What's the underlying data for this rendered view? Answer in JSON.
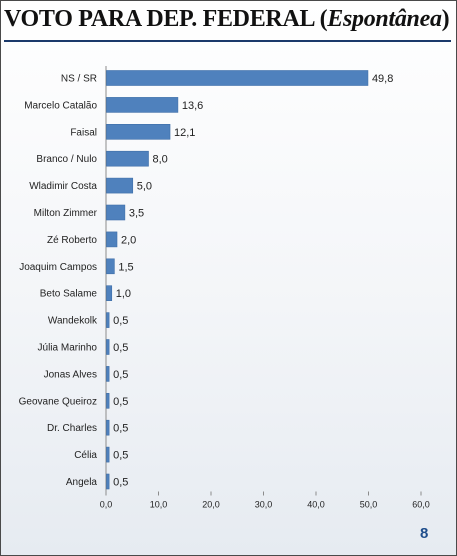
{
  "title": {
    "main": "VOTO  PARA DEP. FEDERAL ",
    "open": "(",
    "italic": "Espontânea",
    "close": ")"
  },
  "page_number": "8",
  "bar_color": "#4f81bd",
  "chart_data": {
    "type": "bar",
    "orientation": "horizontal",
    "title": "VOTO  PARA DEP. FEDERAL (Espontânea)",
    "categories": [
      "NS / SR",
      "Marcelo Catalão",
      "Faisal",
      "Branco / Nulo",
      "Wladimir Costa",
      "Milton Zimmer",
      "Zé Roberto",
      "Joaquim Campos",
      "Beto Salame",
      "Wandekolk",
      "Júlia Marinho",
      "Jonas Alves",
      "Geovane Queiroz",
      "Dr. Charles",
      "Célia",
      "Angela"
    ],
    "values": [
      49.8,
      13.6,
      12.1,
      8.0,
      5.0,
      3.5,
      2.0,
      1.5,
      1.0,
      0.5,
      0.5,
      0.5,
      0.5,
      0.5,
      0.5,
      0.5
    ],
    "value_labels": [
      "49,8",
      "13,6",
      "12,1",
      "8,0",
      "5,0",
      "3,5",
      "2,0",
      "1,5",
      "1,0",
      "0,5",
      "0,5",
      "0,5",
      "0,5",
      "0,5",
      "0,5",
      "0,5"
    ],
    "xlim": [
      0,
      60
    ],
    "ticks": [
      0,
      10,
      20,
      30,
      40,
      50,
      60
    ],
    "tick_labels": [
      "0,0",
      "10,0",
      "20,0",
      "30,0",
      "40,0",
      "50,0",
      "60,0"
    ],
    "xlabel": "",
    "ylabel": "",
    "grid": false,
    "legend": "none"
  }
}
